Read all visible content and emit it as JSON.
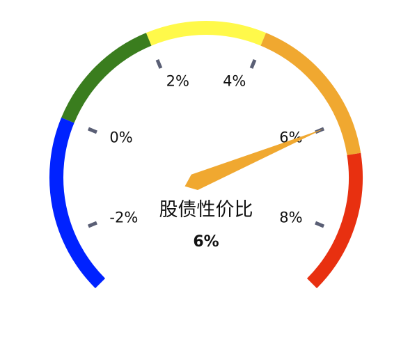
{
  "chart_data": {
    "type": "gauge",
    "title": "股债性价比",
    "value": 6,
    "value_label": "6%",
    "min": -3,
    "max": 9,
    "ticks": [
      {
        "value": -2,
        "label": "-2%"
      },
      {
        "value": 0,
        "label": "0%"
      },
      {
        "value": 2,
        "label": "2%"
      },
      {
        "value": 4,
        "label": "4%"
      },
      {
        "value": 6,
        "label": "6%"
      },
      {
        "value": 8,
        "label": "8%"
      }
    ],
    "bands": [
      {
        "from": -3,
        "to": 0,
        "color": "#0022ff"
      },
      {
        "from": 0,
        "to": 2,
        "color": "#3a7d1e"
      },
      {
        "from": 2,
        "to": 4,
        "color": "#fff94a"
      },
      {
        "from": 4,
        "to": 6.6,
        "color": "#f0a830"
      },
      {
        "from": 6.6,
        "to": 9,
        "color": "#e83010"
      }
    ],
    "pointer_color": "#f0a830",
    "tick_mark_color": "#5a5f75"
  }
}
